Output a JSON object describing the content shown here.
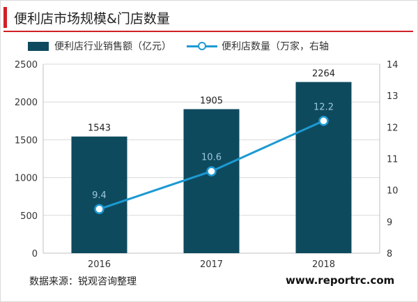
{
  "header": {
    "title": "便利店市场规模&门店数量"
  },
  "footer": {
    "source": "数据来源：锐观咨询整理",
    "website": "www.reportrc.com"
  },
  "colors": {
    "accent": "#d11f26",
    "bar": "#0e4a5e",
    "line": "#1c9ad3"
  },
  "chart_data": {
    "type": "bar",
    "categories": [
      "2016",
      "2017",
      "2018"
    ],
    "series": [
      {
        "name": "便利店行业销售额（亿元）",
        "type": "bar",
        "axis": "left",
        "values": [
          1543,
          1905,
          2264
        ]
      },
      {
        "name": "便利店数量（万家，右轴",
        "type": "line",
        "axis": "right",
        "values": [
          9.4,
          10.6,
          12.2
        ]
      }
    ],
    "y_left": {
      "min": 0,
      "max": 2500,
      "ticks": [
        "0",
        "500",
        "1000",
        "1500",
        "2000",
        "2500"
      ]
    },
    "y_right": {
      "min": 8,
      "max": 14,
      "ticks": [
        "8",
        "9",
        "10",
        "11",
        "12",
        "13",
        "14"
      ]
    },
    "grid": true,
    "legend": "top"
  }
}
